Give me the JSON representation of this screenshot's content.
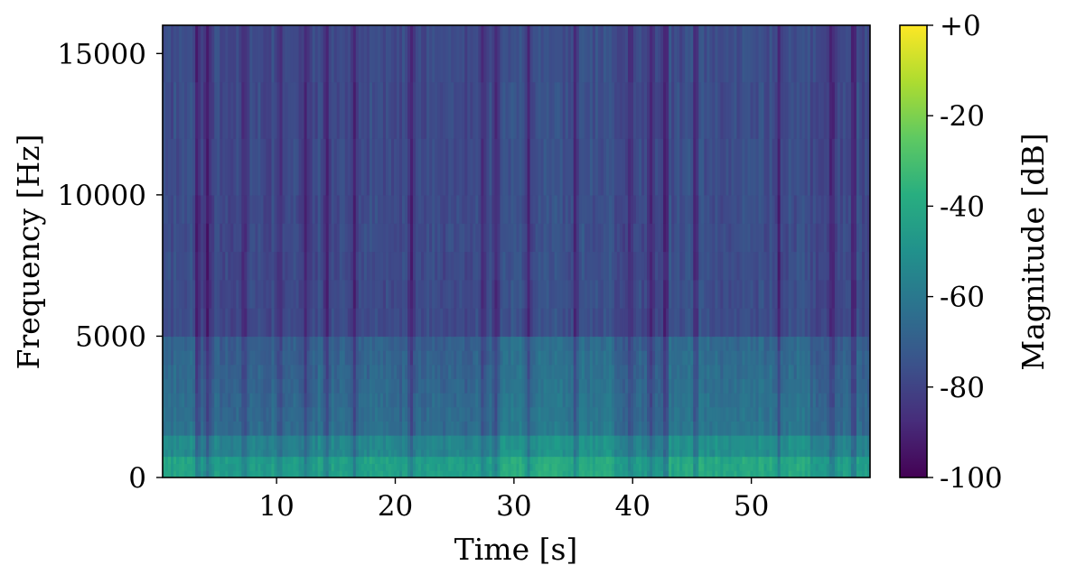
{
  "chart_data": {
    "type": "heatmap",
    "subtype": "spectrogram",
    "title": "",
    "xlabel": "Time [s]",
    "ylabel": "Frequency [Hz]",
    "xlim": [
      0.4,
      60
    ],
    "ylim": [
      0,
      16000
    ],
    "xticks": [
      10,
      20,
      30,
      40,
      50
    ],
    "yticks": [
      0,
      5000,
      10000,
      15000
    ],
    "colormap": "viridis",
    "colorbar": {
      "label": "Magnitude [dB]",
      "range": [
        -100,
        0
      ],
      "ticks": [
        0,
        -20,
        -40,
        -60,
        -80,
        -100
      ],
      "tick_labels": [
        "+0",
        "-20",
        "-40",
        "-60",
        "-80",
        "-100"
      ]
    },
    "description_of_energy": {
      "low_frequency_band_hz": [
        0,
        700
      ],
      "low_frequency_level_db": -45,
      "mid_band_hz": [
        700,
        5000
      ],
      "mid_band_level_db": -65,
      "high_band_hz": [
        5000,
        16000
      ],
      "high_band_level_db": -78
    },
    "dark_time_columns_s": [
      3.3,
      4.2,
      7.3,
      10.3,
      12.5,
      14.2,
      16.5,
      21.3,
      27.4,
      28.5,
      31.2,
      35.2,
      39.8,
      41.5,
      42.8,
      45.3,
      52.3,
      56.8,
      58.6
    ],
    "emphasis_segments": [
      {
        "t": [
          0.4,
          3.2
        ],
        "boost_db": 3
      },
      {
        "t": [
          13.5,
          20.0
        ],
        "boost_db": 2
      },
      {
        "t": [
          28.6,
          38.5
        ],
        "boost_db": 6
      },
      {
        "t": [
          43.0,
          55.0
        ],
        "boost_db": 5
      }
    ],
    "grid": false,
    "legend": "none"
  }
}
